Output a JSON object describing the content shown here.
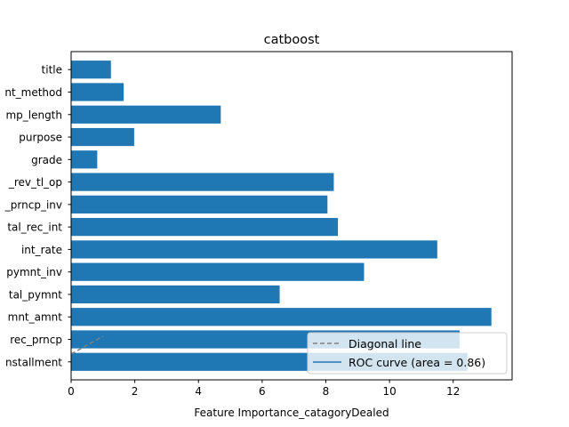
{
  "chart_data": {
    "type": "bar",
    "orientation": "horizontal",
    "title": "catboost",
    "xlabel": "Feature Importance_catagoryDealed",
    "ylabel": "",
    "xlim": [
      0,
      13.85
    ],
    "x_ticks": [
      "0",
      "2",
      "4",
      "6",
      "8",
      "10",
      "12"
    ],
    "categories": [
      "installment",
      "total_rec_prncp",
      "last_pymnt_amnt",
      "total_pymnt",
      "total_pymnt_inv",
      "int_rate",
      "total_rec_int",
      "out_prncp_inv",
      "num_rev_tl_op",
      "grade",
      "purpose",
      "emp_length",
      "payment_method",
      "title"
    ],
    "category_labels_visible": [
      "nstallment",
      "rec_prncp",
      "mnt_amnt",
      "tal_pymnt",
      "pymnt_inv",
      "int_rate",
      "tal_rec_int",
      "_prncp_inv",
      "_rev_tl_op",
      "grade",
      "purpose",
      "mp_length",
      "nt_method",
      "title"
    ],
    "values": [
      12.45,
      12.2,
      13.2,
      6.55,
      9.2,
      11.5,
      8.38,
      8.05,
      8.25,
      0.82,
      1.98,
      4.7,
      1.65,
      1.25
    ],
    "bar_color": "#1f77b4",
    "grid": false,
    "legend": {
      "placement": "lower-right",
      "entries": [
        {
          "label": "Diagonal line",
          "style": "dashed",
          "color": "#808080"
        },
        {
          "label": "ROC curve (area = 0.86)",
          "style": "solid",
          "color": "#1f77b4"
        }
      ]
    },
    "diagonal_line": {
      "x": [
        0,
        1
      ],
      "y": [
        0,
        1
      ],
      "color": "#808080",
      "style": "dashed"
    }
  }
}
